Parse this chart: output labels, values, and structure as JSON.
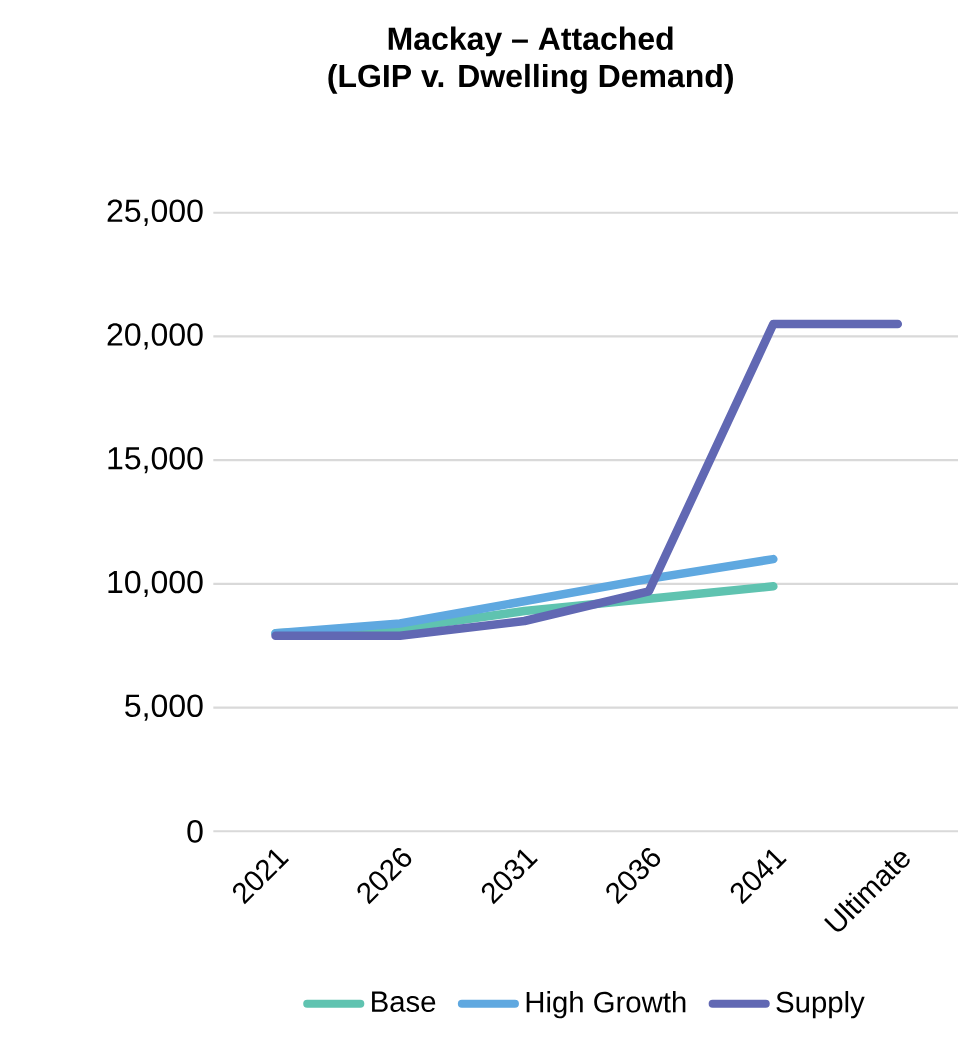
{
  "chart_data": {
    "type": "line",
    "title": "Mackay – Attached\n(LGIP v. Dwelling Demand)",
    "categories": [
      "2021",
      "2026",
      "2031",
      "2036",
      "2041",
      "Ultimate"
    ],
    "series": [
      {
        "name": "Base",
        "color": "#5fc3b0",
        "values": [
          8000,
          8200,
          8900,
          9400,
          9900,
          null
        ]
      },
      {
        "name": "High Growth",
        "color": "#5fa8e0",
        "values": [
          8000,
          8400,
          9300,
          10200,
          11000,
          null
        ]
      },
      {
        "name": "Supply",
        "color": "#6168b3",
        "values": [
          7900,
          7900,
          8500,
          9700,
          20500,
          20500
        ]
      }
    ],
    "ylim": [
      0,
      25000
    ],
    "yticks": [
      {
        "value": 0,
        "label": "0"
      },
      {
        "value": 5000,
        "label": "5,000"
      },
      {
        "value": 10000,
        "label": "10,000"
      },
      {
        "value": 15000,
        "label": "15,000"
      },
      {
        "value": 20000,
        "label": "20,000"
      },
      {
        "value": 25000,
        "label": "25,000"
      }
    ],
    "grid": "y",
    "legend": "bottom",
    "marker": "none",
    "line_style": "solid"
  }
}
